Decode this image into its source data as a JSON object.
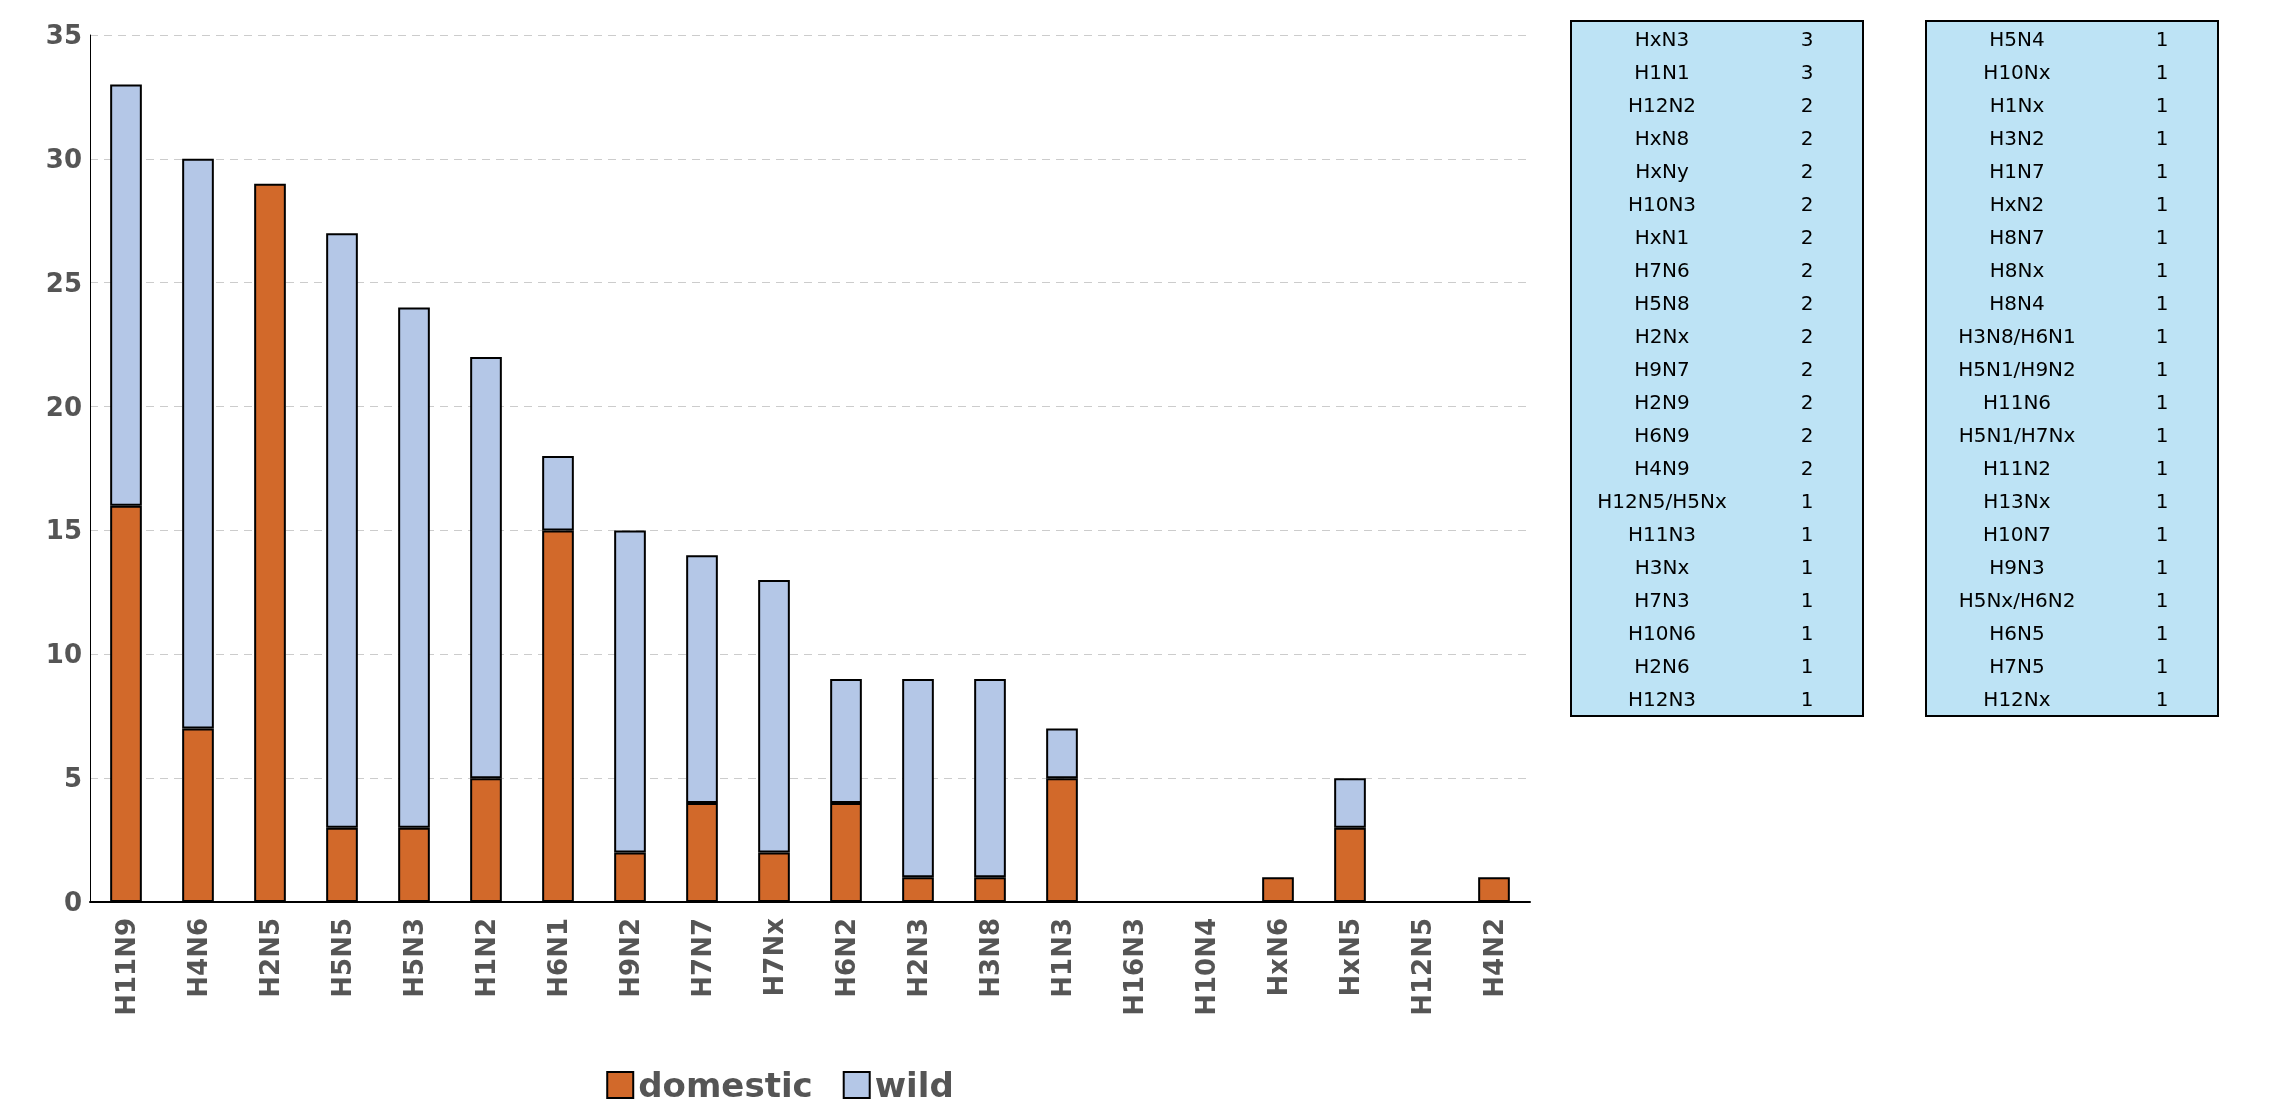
{
  "chart_data": {
    "type": "bar",
    "stacked": true,
    "categories": [
      "H11N9",
      "H4N6",
      "H2N5",
      "H5N5",
      "H5N3",
      "H1N2",
      "H6N1",
      "H9N2",
      "H7N7",
      "H7Nx",
      "H6N2",
      "H2N3",
      "H3N8",
      "H1N3",
      "H16N3",
      "H10N4",
      "HxN6",
      "HxN5",
      "H12N5",
      "H4N2"
    ],
    "series": [
      {
        "name": "domestic",
        "color": "#d2692a",
        "values": [
          16,
          7,
          29,
          3,
          3,
          5,
          15,
          2,
          4,
          2,
          4,
          1,
          1,
          5,
          0,
          0,
          1,
          3,
          0,
          1
        ]
      },
      {
        "name": "wild",
        "color": "#b4c7e7",
        "values": [
          17,
          23,
          0,
          24,
          21,
          17,
          3,
          13,
          10,
          11,
          5,
          8,
          8,
          2,
          null,
          null,
          null,
          2,
          null,
          null
        ]
      }
    ],
    "ylim": [
      0,
      35
    ],
    "yticks": [
      0,
      5,
      10,
      15,
      20,
      25,
      30,
      35
    ],
    "grid": "y",
    "legend": "bottom",
    "annotations": [
      "HxN3 3",
      "H1N1 3",
      "H12N2 2",
      "HxN8 2",
      "HxNy 2",
      "H10N3 2",
      "HxN1 2",
      "H7N6 2",
      "H5N8 2",
      "H2Nx 2",
      "H9N7 2",
      "H2N9 2",
      "H6N9 2",
      "H4N9 2",
      "H12N5/H5Nx 1",
      "H11N3 1",
      "H3Nx 1",
      "H7N3 1",
      "H10N6 1",
      "H2N6 1",
      "H12N3 1",
      "H5N4 1",
      "H10Nx 1",
      "H1Nx 1",
      "H3N2 1",
      "H1N7 1",
      "HxN2 1",
      "H8N7 1",
      "H8Nx 1",
      "H8N4 1",
      "H3N8/H6N1 1",
      "H5N1/H9N2 1",
      "H11N6 1",
      "H5N1/H7Nx 1",
      "H11N2 1",
      "H13Nx 1",
      "H10N7 1",
      "H9N3 1",
      "H5Nx/H6N2 1",
      "H6N5 1",
      "H7N5 1",
      "H12Nx 1"
    ]
  }
}
